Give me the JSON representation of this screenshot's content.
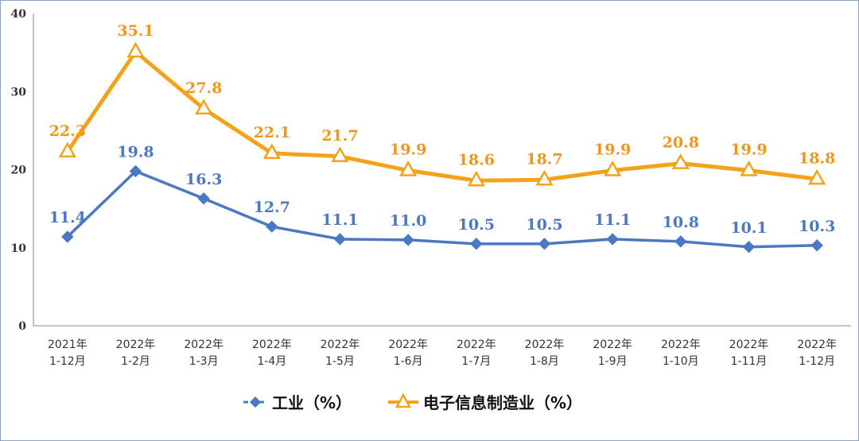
{
  "chart_data": {
    "type": "line",
    "title": "",
    "xlabel": "",
    "ylabel": "",
    "ylim": [
      0,
      40
    ],
    "yticks": [
      "0",
      "10",
      "20",
      "30",
      "40"
    ],
    "grid": false,
    "legend_position": "bottom",
    "categories": [
      [
        "2021年",
        "1-12月"
      ],
      [
        "2022年",
        "1-2月"
      ],
      [
        "2022年",
        "1-3月"
      ],
      [
        "2022年",
        "1-4月"
      ],
      [
        "2022年",
        "1-5月"
      ],
      [
        "2022年",
        "1-6月"
      ],
      [
        "2022年",
        "1-7月"
      ],
      [
        "2022年",
        "1-8月"
      ],
      [
        "2022年",
        "1-9月"
      ],
      [
        "2022年",
        "1-10月"
      ],
      [
        "2022年",
        "1-11月"
      ],
      [
        "2022年",
        "1-12月"
      ]
    ],
    "series": [
      {
        "name": "工业（%）",
        "color": "#4a78c2",
        "label_color": "#4a78c2",
        "marker": "diamond",
        "values": [
          11.4,
          19.8,
          16.3,
          12.7,
          11.1,
          11.0,
          10.5,
          10.5,
          11.1,
          10.8,
          10.1,
          10.3
        ],
        "labels": [
          "11.4",
          "19.8",
          "16.3",
          "12.7",
          "11.1",
          "11.0",
          "10.5",
          "10.5",
          "11.1",
          "10.8",
          "10.1",
          "10.3"
        ]
      },
      {
        "name": "电子信息制造业（%）",
        "color": "#f5a21b",
        "label_color": "#f0961c",
        "marker": "triangle",
        "values": [
          22.3,
          35.1,
          27.8,
          22.1,
          21.7,
          19.9,
          18.6,
          18.7,
          19.9,
          20.8,
          19.9,
          18.8
        ],
        "labels": [
          "22.3",
          "35.1",
          "27.8",
          "22.1",
          "21.7",
          "19.9",
          "18.6",
          "18.7",
          "19.9",
          "20.8",
          "19.9",
          "18.8"
        ]
      }
    ]
  }
}
